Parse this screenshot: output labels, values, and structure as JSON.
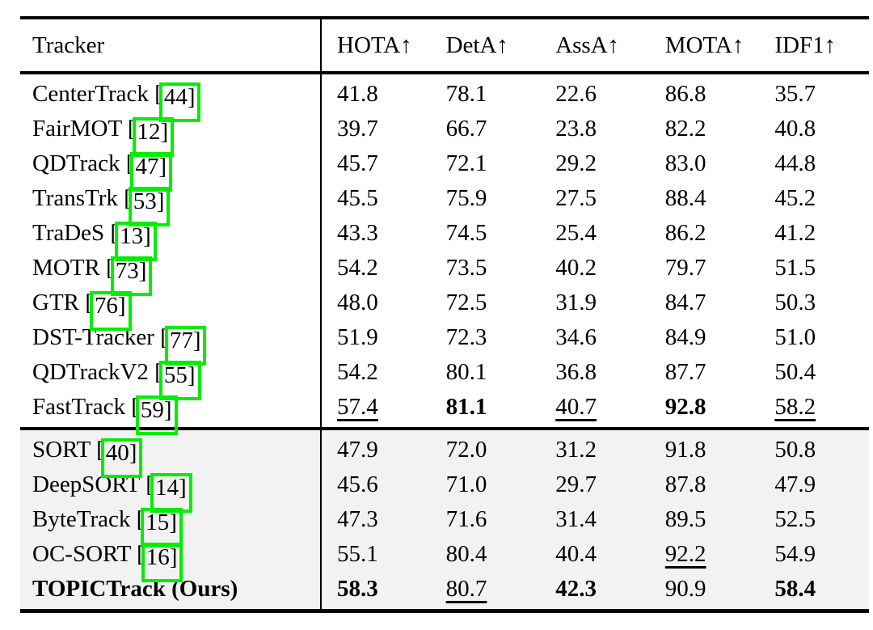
{
  "table": {
    "columns": [
      {
        "label": "Tracker"
      },
      {
        "label": "HOTA↑"
      },
      {
        "label": "DetA↑"
      },
      {
        "label": "AssA↑"
      },
      {
        "label": "MOTA↑"
      },
      {
        "label": "IDF1↑"
      }
    ],
    "sections": [
      {
        "shaded": false,
        "rows": [
          {
            "name": "CenterTrack",
            "cite": "44",
            "bold": false,
            "values": [
              "41.8",
              "78.1",
              "22.6",
              "86.8",
              "35.7"
            ],
            "styles": [
              "",
              "",
              "",
              "",
              ""
            ]
          },
          {
            "name": "FairMOT",
            "cite": "12",
            "bold": false,
            "values": [
              "39.7",
              "66.7",
              "23.8",
              "82.2",
              "40.8"
            ],
            "styles": [
              "",
              "",
              "",
              "",
              ""
            ]
          },
          {
            "name": "QDTrack",
            "cite": "47",
            "bold": false,
            "values": [
              "45.7",
              "72.1",
              "29.2",
              "83.0",
              "44.8"
            ],
            "styles": [
              "",
              "",
              "",
              "",
              ""
            ]
          },
          {
            "name": "TransTrk",
            "cite": "53",
            "bold": false,
            "values": [
              "45.5",
              "75.9",
              "27.5",
              "88.4",
              "45.2"
            ],
            "styles": [
              "",
              "",
              "",
              "",
              ""
            ]
          },
          {
            "name": "TraDeS",
            "cite": "13",
            "bold": false,
            "values": [
              "43.3",
              "74.5",
              "25.4",
              "86.2",
              "41.2"
            ],
            "styles": [
              "",
              "",
              "",
              "",
              ""
            ]
          },
          {
            "name": "MOTR",
            "cite": "73",
            "bold": false,
            "values": [
              "54.2",
              "73.5",
              "40.2",
              "79.7",
              "51.5"
            ],
            "styles": [
              "",
              "",
              "",
              "",
              ""
            ]
          },
          {
            "name": "GTR",
            "cite": "76",
            "bold": false,
            "values": [
              "48.0",
              "72.5",
              "31.9",
              "84.7",
              "50.3"
            ],
            "styles": [
              "",
              "",
              "",
              "",
              ""
            ]
          },
          {
            "name": "DST-Tracker",
            "cite": "77",
            "bold": false,
            "values": [
              "51.9",
              "72.3",
              "34.6",
              "84.9",
              "51.0"
            ],
            "styles": [
              "",
              "",
              "",
              "",
              ""
            ]
          },
          {
            "name": "QDTrackV2",
            "cite": "55",
            "bold": false,
            "values": [
              "54.2",
              "80.1",
              "36.8",
              "87.7",
              "50.4"
            ],
            "styles": [
              "",
              "",
              "",
              "",
              ""
            ]
          },
          {
            "name": "FastTrack",
            "cite": "59",
            "bold": false,
            "values": [
              "57.4",
              "81.1",
              "40.7",
              "92.8",
              "58.2"
            ],
            "styles": [
              "u",
              "b",
              "u",
              "b",
              "u"
            ]
          }
        ]
      },
      {
        "shaded": true,
        "rows": [
          {
            "name": "SORT",
            "cite": "40",
            "bold": false,
            "values": [
              "47.9",
              "72.0",
              "31.2",
              "91.8",
              "50.8"
            ],
            "styles": [
              "",
              "",
              "",
              "",
              ""
            ]
          },
          {
            "name": "DeepSORT",
            "cite": "14",
            "bold": false,
            "values": [
              "45.6",
              "71.0",
              "29.7",
              "87.8",
              "47.9"
            ],
            "styles": [
              "",
              "",
              "",
              "",
              ""
            ]
          },
          {
            "name": "ByteTrack",
            "cite": "15",
            "bold": false,
            "values": [
              "47.3",
              "71.6",
              "31.4",
              "89.5",
              "52.5"
            ],
            "styles": [
              "",
              "",
              "",
              "",
              ""
            ]
          },
          {
            "name": "OC-SORT",
            "cite": "16",
            "bold": false,
            "values": [
              "55.1",
              "80.4",
              "40.4",
              "92.2",
              "54.9"
            ],
            "styles": [
              "",
              "",
              "",
              "u",
              ""
            ]
          },
          {
            "name": "TOPICTrack (Ours)",
            "cite": null,
            "bold": true,
            "values": [
              "58.3",
              "80.7",
              "42.3",
              "90.9",
              "58.4"
            ],
            "styles": [
              "b",
              "u",
              "b",
              "",
              "b"
            ]
          }
        ]
      }
    ]
  },
  "colors": {
    "citation_border": "#00ee00",
    "shaded_row_background": "#f2f2f2",
    "rule": "#000000",
    "text": "#000000"
  }
}
